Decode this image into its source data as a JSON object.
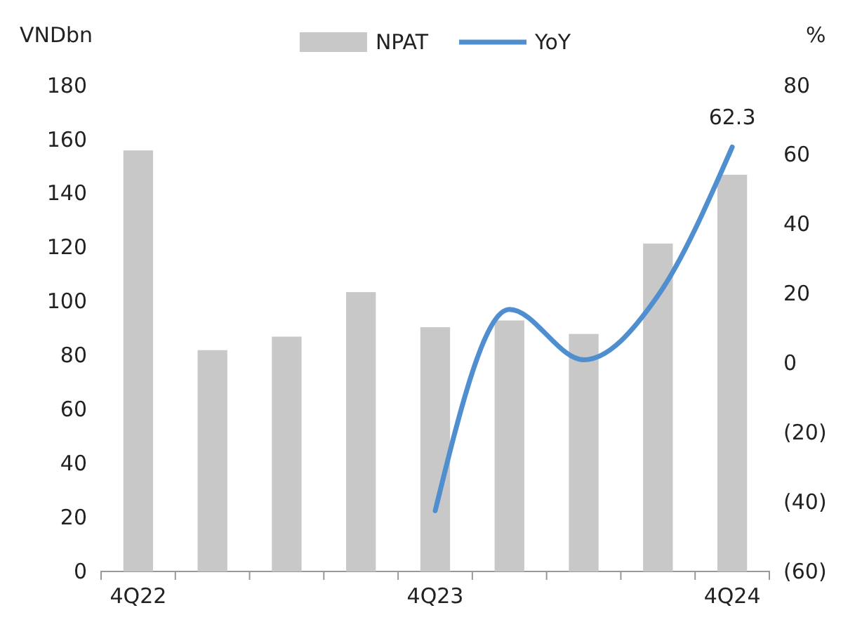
{
  "chart_data": {
    "type": "bar",
    "ylabel": "VNDbn",
    "y2label": "%",
    "categories": [
      "4Q22",
      null,
      null,
      null,
      "4Q23",
      null,
      null,
      null,
      "4Q24"
    ],
    "series": [
      {
        "name": "NPAT",
        "color": "#c8c8c8",
        "values": [
          156,
          82,
          87,
          103.5,
          90.5,
          93,
          88,
          121.5,
          147
        ]
      },
      {
        "name": "YoY",
        "type": "line",
        "axis": "y2",
        "color": "#4f8fd0",
        "values": [
          null,
          null,
          null,
          null,
          -42.5,
          15.5,
          1,
          19.5,
          62.3
        ],
        "value_labels": [
          null,
          null,
          null,
          null,
          null,
          null,
          null,
          null,
          "62.3"
        ]
      }
    ],
    "ylim": [
      0,
      180
    ],
    "yticks": [
      0,
      20,
      40,
      60,
      80,
      100,
      120,
      140,
      160,
      180
    ],
    "y2lim": [
      -60,
      80
    ],
    "y2ticks": [
      {
        "value": -60,
        "label": "(60)"
      },
      {
        "value": -40,
        "label": "(40)"
      },
      {
        "value": -20,
        "label": "(20)"
      },
      0,
      20,
      40,
      60,
      80
    ],
    "legend": "top",
    "grid": false
  }
}
